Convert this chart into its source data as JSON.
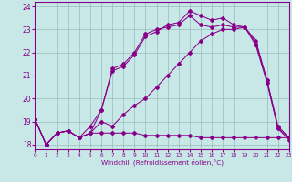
{
  "xlabel": "Windchill (Refroidissement éolien,°C)",
  "bg_color": "#c8e8e8",
  "line_color": "#880088",
  "grid_color": "#99bbbb",
  "xlim": [
    0,
    23
  ],
  "ylim": [
    17.8,
    24.2
  ],
  "yticks": [
    18,
    19,
    20,
    21,
    22,
    23,
    24
  ],
  "xticks": [
    0,
    1,
    2,
    3,
    4,
    5,
    6,
    7,
    8,
    9,
    10,
    11,
    12,
    13,
    14,
    15,
    16,
    17,
    18,
    19,
    20,
    21,
    22,
    23
  ],
  "curve1_x": [
    0,
    1,
    2,
    3,
    4,
    5,
    6,
    7,
    8,
    9,
    10,
    11,
    12,
    13,
    14,
    15,
    16,
    17,
    18,
    19,
    20,
    21,
    22,
    23
  ],
  "curve1_y": [
    19.1,
    18.0,
    18.5,
    18.6,
    18.3,
    18.5,
    18.5,
    18.5,
    18.5,
    18.5,
    18.4,
    18.4,
    18.4,
    18.4,
    18.4,
    18.3,
    18.3,
    18.3,
    18.3,
    18.3,
    18.3,
    18.3,
    18.3,
    18.3
  ],
  "curve2_x": [
    0,
    1,
    2,
    3,
    4,
    5,
    6,
    7,
    8,
    9,
    10,
    11,
    12,
    13,
    14,
    15,
    16,
    17,
    18,
    19,
    20,
    21,
    22,
    23
  ],
  "curve2_y": [
    19.1,
    18.0,
    18.5,
    18.6,
    18.3,
    18.5,
    19.0,
    18.8,
    19.3,
    19.7,
    20.0,
    20.5,
    21.0,
    21.5,
    22.0,
    22.5,
    22.8,
    23.0,
    23.0,
    23.1,
    22.4,
    20.8,
    18.7,
    18.3
  ],
  "curve3_x": [
    0,
    1,
    2,
    3,
    4,
    5,
    6,
    7,
    8,
    9,
    10,
    11,
    12,
    13,
    14,
    15,
    16,
    17,
    18,
    19,
    20,
    21,
    22,
    23
  ],
  "curve3_y": [
    19.1,
    18.0,
    18.5,
    18.6,
    18.3,
    18.5,
    19.5,
    21.3,
    21.5,
    22.0,
    22.8,
    23.0,
    23.1,
    23.2,
    23.6,
    23.2,
    23.1,
    23.2,
    23.1,
    23.1,
    22.5,
    20.8,
    18.8,
    18.3
  ],
  "curve4_x": [
    0,
    1,
    2,
    3,
    4,
    5,
    6,
    7,
    8,
    9,
    10,
    11,
    12,
    13,
    14,
    15,
    16,
    17,
    18,
    19,
    20,
    21,
    22,
    23
  ],
  "curve4_y": [
    19.1,
    18.0,
    18.5,
    18.6,
    18.3,
    18.8,
    19.5,
    21.2,
    21.4,
    21.9,
    22.7,
    22.9,
    23.2,
    23.3,
    23.8,
    23.6,
    23.4,
    23.5,
    23.2,
    23.1,
    22.3,
    20.7,
    18.7,
    18.2
  ]
}
